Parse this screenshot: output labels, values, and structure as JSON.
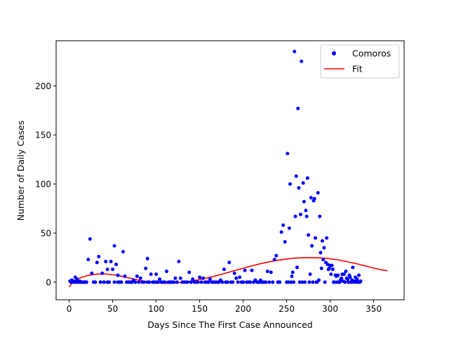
{
  "chart_data": {
    "type": "scatter",
    "title": "",
    "xlabel": "Days Since The First Case Announced",
    "ylabel": "Number of Daily Cases",
    "xlim": [
      -15,
      385
    ],
    "ylim": [
      -18,
      246
    ],
    "xticks": [
      0,
      50,
      100,
      150,
      200,
      250,
      300,
      350
    ],
    "yticks": [
      0,
      50,
      100,
      150,
      200
    ],
    "grid": false,
    "legend": "top-right",
    "series": [
      {
        "name": "Comoros",
        "kind": "scatter",
        "color": "#0000ff",
        "points": [
          [
            1,
            1
          ],
          [
            2,
            0
          ],
          [
            3,
            2
          ],
          [
            4,
            0
          ],
          [
            5,
            1
          ],
          [
            6,
            0
          ],
          [
            7,
            5
          ],
          [
            8,
            0
          ],
          [
            9,
            3
          ],
          [
            10,
            0
          ],
          [
            11,
            0
          ],
          [
            12,
            1
          ],
          [
            13,
            0
          ],
          [
            14,
            0
          ],
          [
            15,
            0
          ],
          [
            16,
            0
          ],
          [
            17,
            0
          ],
          [
            18,
            0
          ],
          [
            19,
            0
          ],
          [
            20,
            0
          ],
          [
            22,
            23
          ],
          [
            24,
            44
          ],
          [
            26,
            9
          ],
          [
            28,
            0
          ],
          [
            30,
            0
          ],
          [
            32,
            20
          ],
          [
            34,
            26
          ],
          [
            36,
            0
          ],
          [
            38,
            9
          ],
          [
            40,
            0
          ],
          [
            42,
            21
          ],
          [
            44,
            13
          ],
          [
            46,
            0
          ],
          [
            48,
            21
          ],
          [
            50,
            13
          ],
          [
            52,
            37
          ],
          [
            54,
            18
          ],
          [
            56,
            7
          ],
          [
            58,
            0
          ],
          [
            60,
            0
          ],
          [
            62,
            31
          ],
          [
            64,
            6
          ],
          [
            66,
            0
          ],
          [
            68,
            0
          ],
          [
            70,
            0
          ],
          [
            72,
            0
          ],
          [
            74,
            2
          ],
          [
            76,
            0
          ],
          [
            78,
            6
          ],
          [
            80,
            0
          ],
          [
            82,
            4
          ],
          [
            84,
            0
          ],
          [
            86,
            0
          ],
          [
            88,
            14
          ],
          [
            90,
            24
          ],
          [
            92,
            0
          ],
          [
            94,
            8
          ],
          [
            96,
            0
          ],
          [
            98,
            0
          ],
          [
            100,
            8
          ],
          [
            102,
            0
          ],
          [
            104,
            3
          ],
          [
            106,
            0
          ],
          [
            108,
            0
          ],
          [
            110,
            0
          ],
          [
            112,
            11
          ],
          [
            114,
            0
          ],
          [
            116,
            0
          ],
          [
            118,
            0
          ],
          [
            120,
            0
          ],
          [
            122,
            4
          ],
          [
            124,
            0
          ],
          [
            126,
            21
          ],
          [
            128,
            4
          ],
          [
            130,
            0
          ],
          [
            132,
            0
          ],
          [
            134,
            0
          ],
          [
            136,
            0
          ],
          [
            138,
            10
          ],
          [
            140,
            0
          ],
          [
            142,
            3
          ],
          [
            144,
            0
          ],
          [
            146,
            0
          ],
          [
            148,
            0
          ],
          [
            150,
            5
          ],
          [
            152,
            0
          ],
          [
            154,
            4
          ],
          [
            156,
            0
          ],
          [
            158,
            0
          ],
          [
            160,
            0
          ],
          [
            162,
            3
          ],
          [
            164,
            0
          ],
          [
            166,
            0
          ],
          [
            168,
            0
          ],
          [
            170,
            0
          ],
          [
            172,
            0
          ],
          [
            174,
            2
          ],
          [
            176,
            0
          ],
          [
            178,
            13
          ],
          [
            180,
            0
          ],
          [
            182,
            0
          ],
          [
            184,
            20
          ],
          [
            186,
            0
          ],
          [
            188,
            0
          ],
          [
            190,
            9
          ],
          [
            192,
            4
          ],
          [
            194,
            0
          ],
          [
            196,
            5
          ],
          [
            198,
            0
          ],
          [
            200,
            0
          ],
          [
            202,
            12
          ],
          [
            204,
            0
          ],
          [
            206,
            0
          ],
          [
            208,
            0
          ],
          [
            210,
            12
          ],
          [
            212,
            0
          ],
          [
            214,
            2
          ],
          [
            216,
            0
          ],
          [
            218,
            0
          ],
          [
            220,
            2
          ],
          [
            222,
            0
          ],
          [
            224,
            0
          ],
          [
            226,
            0
          ],
          [
            228,
            11
          ],
          [
            230,
            0
          ],
          [
            232,
            10
          ],
          [
            234,
            0
          ],
          [
            236,
            23
          ],
          [
            238,
            27
          ],
          [
            240,
            0
          ],
          [
            242,
            0
          ],
          [
            244,
            51
          ],
          [
            246,
            58
          ],
          [
            248,
            41
          ],
          [
            250,
            0
          ],
          [
            251,
            131
          ],
          [
            252,
            0
          ],
          [
            253,
            55
          ],
          [
            254,
            100
          ],
          [
            255,
            0
          ],
          [
            256,
            6
          ],
          [
            257,
            10
          ],
          [
            258,
            0
          ],
          [
            259,
            235
          ],
          [
            260,
            67
          ],
          [
            261,
            108
          ],
          [
            262,
            15
          ],
          [
            263,
            177
          ],
          [
            264,
            96
          ],
          [
            265,
            0
          ],
          [
            266,
            69
          ],
          [
            267,
            225
          ],
          [
            268,
            0
          ],
          [
            269,
            101
          ],
          [
            270,
            82
          ],
          [
            271,
            0
          ],
          [
            272,
            73
          ],
          [
            273,
            67
          ],
          [
            274,
            106
          ],
          [
            275,
            48
          ],
          [
            276,
            0
          ],
          [
            277,
            8
          ],
          [
            278,
            86
          ],
          [
            279,
            37
          ],
          [
            280,
            0
          ],
          [
            281,
            83
          ],
          [
            282,
            85
          ],
          [
            283,
            45
          ],
          [
            284,
            0
          ],
          [
            285,
            0
          ],
          [
            286,
            91
          ],
          [
            287,
            2
          ],
          [
            288,
            67
          ],
          [
            289,
            30
          ],
          [
            290,
            14
          ],
          [
            291,
            42
          ],
          [
            292,
            23
          ],
          [
            293,
            35
          ],
          [
            294,
            0
          ],
          [
            295,
            20
          ],
          [
            296,
            45
          ],
          [
            297,
            18
          ],
          [
            298,
            13
          ],
          [
            299,
            14
          ],
          [
            300,
            17
          ],
          [
            301,
            8
          ],
          [
            302,
            17
          ],
          [
            303,
            13
          ],
          [
            304,
            0
          ],
          [
            305,
            0
          ],
          [
            306,
            7
          ],
          [
            307,
            6
          ],
          [
            308,
            0
          ],
          [
            309,
            7
          ],
          [
            310,
            0
          ],
          [
            311,
            0
          ],
          [
            312,
            2
          ],
          [
            313,
            4
          ],
          [
            314,
            8
          ],
          [
            315,
            1
          ],
          [
            316,
            8
          ],
          [
            317,
            0
          ],
          [
            318,
            11
          ],
          [
            319,
            4
          ],
          [
            320,
            3
          ],
          [
            321,
            0
          ],
          [
            322,
            7
          ],
          [
            323,
            5
          ],
          [
            324,
            0
          ],
          [
            325,
            2
          ],
          [
            326,
            15
          ],
          [
            327,
            0
          ],
          [
            328,
            1
          ],
          [
            329,
            5
          ],
          [
            330,
            0
          ],
          [
            331,
            3
          ],
          [
            332,
            0
          ],
          [
            333,
            7
          ],
          [
            334,
            0
          ],
          [
            335,
            1
          ],
          [
            36,
            0
          ],
          [
            40,
            0
          ],
          [
            44,
            0
          ],
          [
            52,
            0
          ],
          [
            56,
            0
          ],
          [
            72,
            0
          ],
          [
            90,
            0
          ],
          [
            100,
            0
          ],
          [
            120,
            0
          ],
          [
            140,
            0
          ],
          [
            160,
            0
          ],
          [
            180,
            0
          ],
          [
            200,
            0
          ],
          [
            220,
            0
          ],
          [
            240,
            0
          ]
        ]
      },
      {
        "name": "Fit",
        "kind": "line",
        "color": "#ff0000",
        "points": [
          [
            0,
            -5
          ],
          [
            5,
            1
          ],
          [
            10,
            3.5
          ],
          [
            20,
            6.5
          ],
          [
            30,
            8
          ],
          [
            40,
            8.5
          ],
          [
            50,
            7.5
          ],
          [
            60,
            6
          ],
          [
            70,
            4
          ],
          [
            80,
            2
          ],
          [
            90,
            0.5
          ],
          [
            100,
            -0.5
          ],
          [
            110,
            -1.2
          ],
          [
            120,
            -1
          ],
          [
            130,
            -0.2
          ],
          [
            140,
            1
          ],
          [
            150,
            2.6
          ],
          [
            160,
            4.5
          ],
          [
            170,
            6.8
          ],
          [
            180,
            9.2
          ],
          [
            190,
            11.7
          ],
          [
            200,
            14.2
          ],
          [
            210,
            16.6
          ],
          [
            220,
            18.8
          ],
          [
            230,
            20.7
          ],
          [
            240,
            22.3
          ],
          [
            250,
            23.6
          ],
          [
            260,
            24.5
          ],
          [
            270,
            24.9
          ],
          [
            280,
            25
          ],
          [
            290,
            24.6
          ],
          [
            300,
            23.8
          ],
          [
            310,
            22.5
          ],
          [
            320,
            20.8
          ],
          [
            330,
            18.8
          ],
          [
            340,
            16.6
          ],
          [
            350,
            14.3
          ],
          [
            360,
            12.4
          ],
          [
            366,
            11.5
          ]
        ]
      }
    ]
  }
}
